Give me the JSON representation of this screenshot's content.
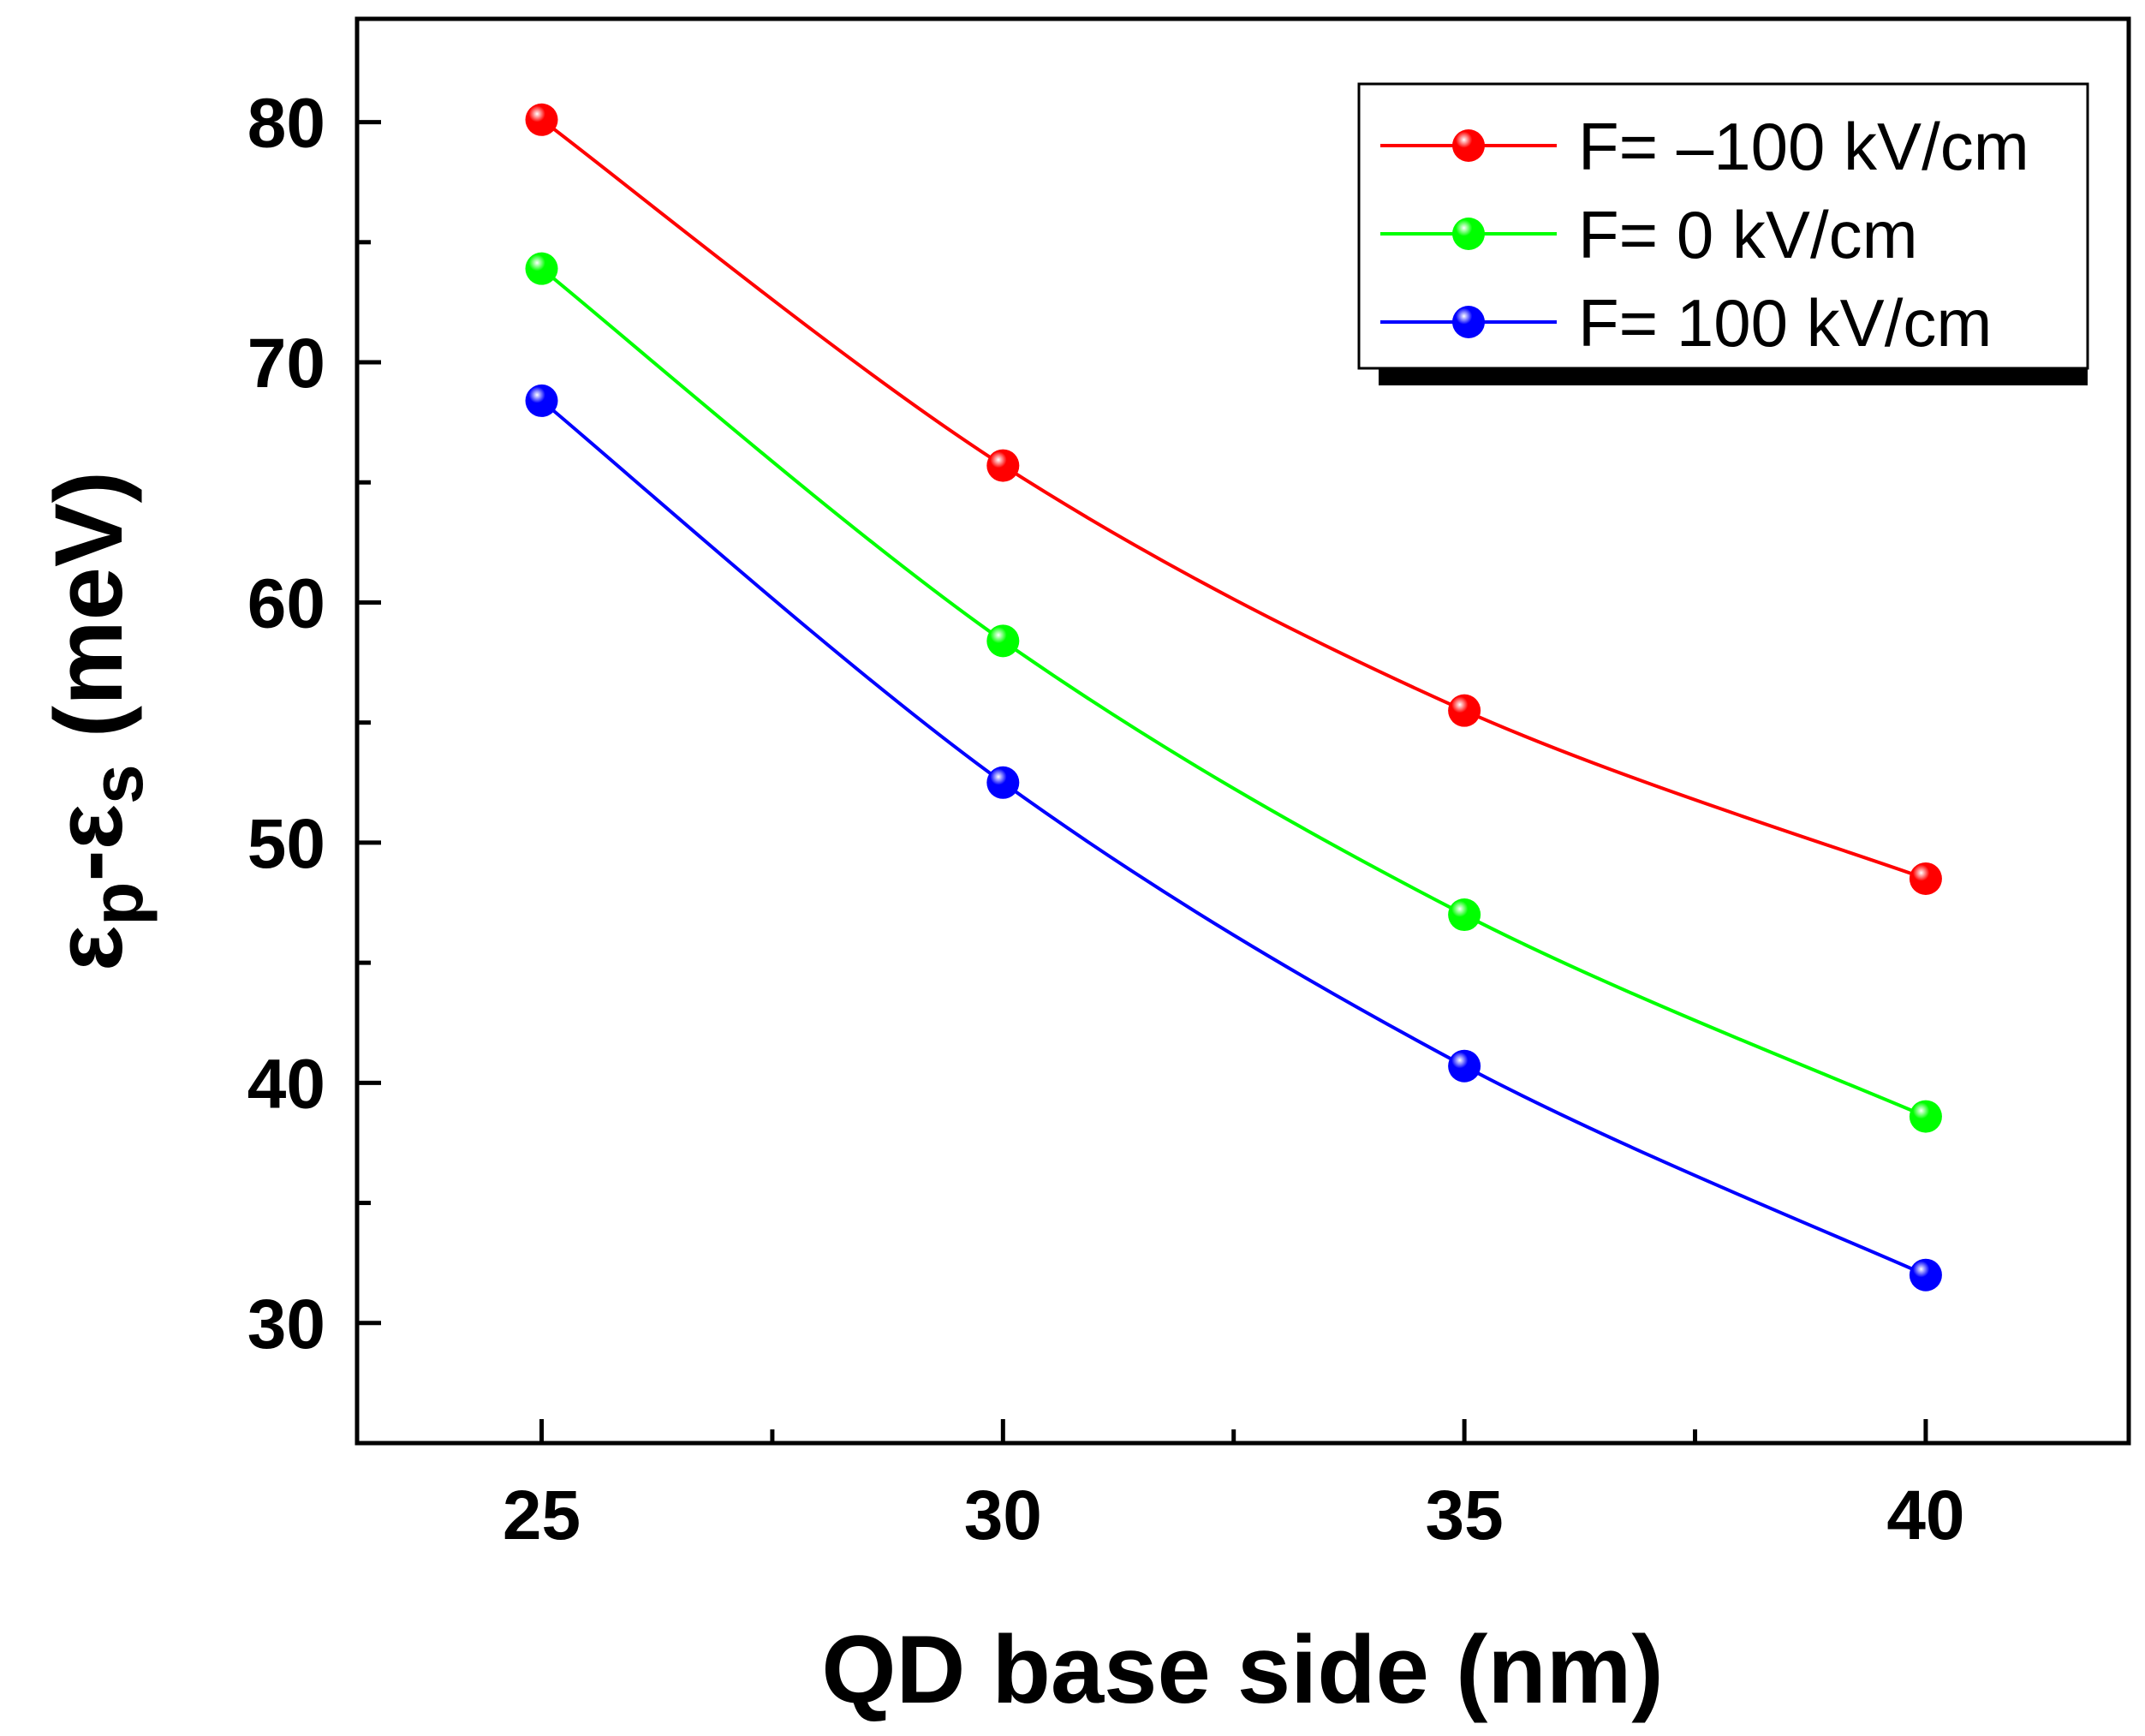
{
  "chart_data": {
    "type": "line",
    "title": "",
    "xlabel": "QD base side (nm)",
    "ylabel": {
      "epsilon": "ε",
      "sub_p": "p",
      "dash": "-",
      "sub_s": "s",
      "unit": " (meV)"
    },
    "xlim": [
      23,
      42.2
    ],
    "ylim": [
      25,
      84.3
    ],
    "xticks": [
      25,
      30,
      35,
      40
    ],
    "xticks_minor": [
      27.5,
      32.5,
      37.5
    ],
    "yticks": [
      30,
      40,
      50,
      60,
      70,
      80
    ],
    "yticks_minor": [
      35,
      45,
      55,
      65,
      75
    ],
    "x": [
      25,
      30,
      35,
      40
    ],
    "series": [
      {
        "name": "F= –100 kV/cm",
        "color": "#ff0000",
        "values": [
          80.1,
          65.7,
          55.5,
          48.5
        ]
      },
      {
        "name": "F= 0 kV/cm",
        "color": "#00ff00",
        "values": [
          73.9,
          58.4,
          47.0,
          38.6
        ]
      },
      {
        "name": "F= 100 kV/cm",
        "color": "#0000ff",
        "values": [
          68.4,
          52.5,
          40.7,
          32.0
        ]
      }
    ],
    "legend_position": "top-right"
  }
}
